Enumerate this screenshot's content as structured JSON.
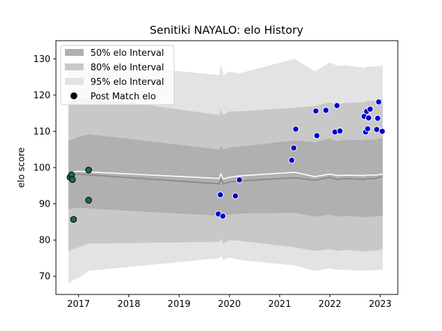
{
  "chart_data": {
    "type": "line",
    "title": "Senitiki NAYALO: elo History",
    "xlabel": "",
    "ylabel": "elo score",
    "xlim": [
      2016.55,
      2023.35
    ],
    "ylim": [
      65,
      135
    ],
    "x_ticks": [
      2017,
      2018,
      2019,
      2020,
      2021,
      2022,
      2023
    ],
    "x_tick_labels": [
      "2017",
      "2018",
      "2019",
      "2020",
      "2021",
      "2022",
      "2023"
    ],
    "y_ticks": [
      70,
      80,
      90,
      100,
      110,
      120,
      130
    ],
    "y_tick_labels": [
      "70",
      "80",
      "90",
      "100",
      "110",
      "120",
      "130"
    ],
    "grid": false,
    "legend_position": "top-left",
    "legend": [
      {
        "label": "50% elo Interval",
        "kind": "band",
        "color": "#b0b0b0"
      },
      {
        "label": "80% elo Interval",
        "kind": "band",
        "color": "#c8c8c8"
      },
      {
        "label": "95% elo Interval",
        "kind": "band",
        "color": "#e3e3e3"
      },
      {
        "label": "Post Match elo",
        "kind": "marker",
        "color": "#000000"
      }
    ],
    "band_x": [
      2016.8,
      2016.9,
      2017.0,
      2017.2,
      2019.8,
      2019.83,
      2019.88,
      2020.0,
      2020.2,
      2021.3,
      2021.7,
      2022.0,
      2022.15,
      2022.3,
      2022.7,
      2022.75,
      2022.85,
      2022.95,
      2023.05
    ],
    "median": [
      98.0,
      98.3,
      98.2,
      98.0,
      95.5,
      97.0,
      95.5,
      96.0,
      96.3,
      97.2,
      96.5,
      97.3,
      96.7,
      97.0,
      96.7,
      97.0,
      96.9,
      97.2,
      97.6
    ],
    "mean_line": [
      98.2,
      98.8,
      99.0,
      98.8,
      97.0,
      98.2,
      96.8,
      97.3,
      97.7,
      98.7,
      97.5,
      98.2,
      97.8,
      97.9,
      97.8,
      98.0,
      97.9,
      98.0,
      98.2
    ],
    "band50_lo": [
      88.5,
      88.8,
      88.9,
      88.7,
      86.7,
      87.5,
      86.8,
      87.0,
      87.3,
      87.5,
      86.5,
      87.0,
      86.5,
      86.7,
      86.3,
      86.5,
      86.4,
      86.6,
      86.8
    ],
    "band50_hi": [
      107.5,
      107.9,
      108.5,
      109.2,
      105.0,
      106.0,
      105.0,
      105.5,
      105.8,
      107.5,
      107.0,
      108.0,
      107.2,
      107.7,
      107.5,
      107.8,
      107.6,
      107.9,
      108.2
    ],
    "band80_lo": [
      77.0,
      77.5,
      78.0,
      79.0,
      79.5,
      80.5,
      79.0,
      80.0,
      79.8,
      78.0,
      77.0,
      77.5,
      77.0,
      77.3,
      76.8,
      77.0,
      77.0,
      77.2,
      77.5
    ],
    "band80_hi": [
      118.0,
      118.5,
      119.0,
      119.5,
      114.5,
      116.0,
      114.5,
      115.5,
      115.5,
      116.5,
      117.0,
      118.0,
      117.5,
      117.8,
      118.0,
      118.5,
      118.3,
      118.6,
      119.0
    ],
    "band95_lo": [
      68.0,
      69.0,
      69.5,
      71.5,
      75.0,
      75.5,
      74.5,
      75.2,
      74.5,
      73.0,
      71.5,
      72.2,
      71.8,
      71.8,
      71.5,
      71.7,
      71.6,
      71.8,
      71.8
    ],
    "band95_hi": [
      127.5,
      128.0,
      128.5,
      129.0,
      125.5,
      128.5,
      125.5,
      126.5,
      126.0,
      130.0,
      126.5,
      129.0,
      128.0,
      128.2,
      127.5,
      128.0,
      127.8,
      128.0,
      128.2
    ],
    "series": [
      {
        "marker_color": "#1a6b4c",
        "points": [
          {
            "x": 2016.83,
            "y": 97.3
          },
          {
            "x": 2016.86,
            "y": 98.0
          },
          {
            "x": 2016.88,
            "y": 96.7
          },
          {
            "x": 2016.9,
            "y": 85.7
          },
          {
            "x": 2017.2,
            "y": 99.3
          },
          {
            "x": 2017.2,
            "y": 91.0
          }
        ]
      },
      {
        "marker_color": "#0000cc",
        "points": [
          {
            "x": 2019.78,
            "y": 87.2
          },
          {
            "x": 2019.82,
            "y": 92.5
          },
          {
            "x": 2019.87,
            "y": 86.6
          },
          {
            "x": 2020.12,
            "y": 92.2
          },
          {
            "x": 2020.2,
            "y": 96.6
          },
          {
            "x": 2021.24,
            "y": 102.0
          },
          {
            "x": 2021.28,
            "y": 105.4
          },
          {
            "x": 2021.32,
            "y": 110.6
          },
          {
            "x": 2021.72,
            "y": 115.6
          },
          {
            "x": 2021.74,
            "y": 108.8
          },
          {
            "x": 2021.92,
            "y": 115.8
          },
          {
            "x": 2022.1,
            "y": 109.8
          },
          {
            "x": 2022.14,
            "y": 117.1
          },
          {
            "x": 2022.2,
            "y": 110.1
          },
          {
            "x": 2022.68,
            "y": 114.1
          },
          {
            "x": 2022.71,
            "y": 109.8
          },
          {
            "x": 2022.73,
            "y": 115.5
          },
          {
            "x": 2022.75,
            "y": 110.7
          },
          {
            "x": 2022.77,
            "y": 113.7
          },
          {
            "x": 2022.8,
            "y": 116.1
          },
          {
            "x": 2022.93,
            "y": 110.5
          },
          {
            "x": 2022.95,
            "y": 113.6
          },
          {
            "x": 2022.97,
            "y": 118.1
          },
          {
            "x": 2023.04,
            "y": 110.0
          }
        ]
      }
    ],
    "colors": {
      "band95": "#e3e3e3",
      "band80": "#c8c8c8",
      "band50": "#b0b0b0",
      "median": "#8c8c8c",
      "mean_line": "#ffffff",
      "early_marker": "#1a6b4c",
      "late_marker": "#0000cc"
    }
  }
}
